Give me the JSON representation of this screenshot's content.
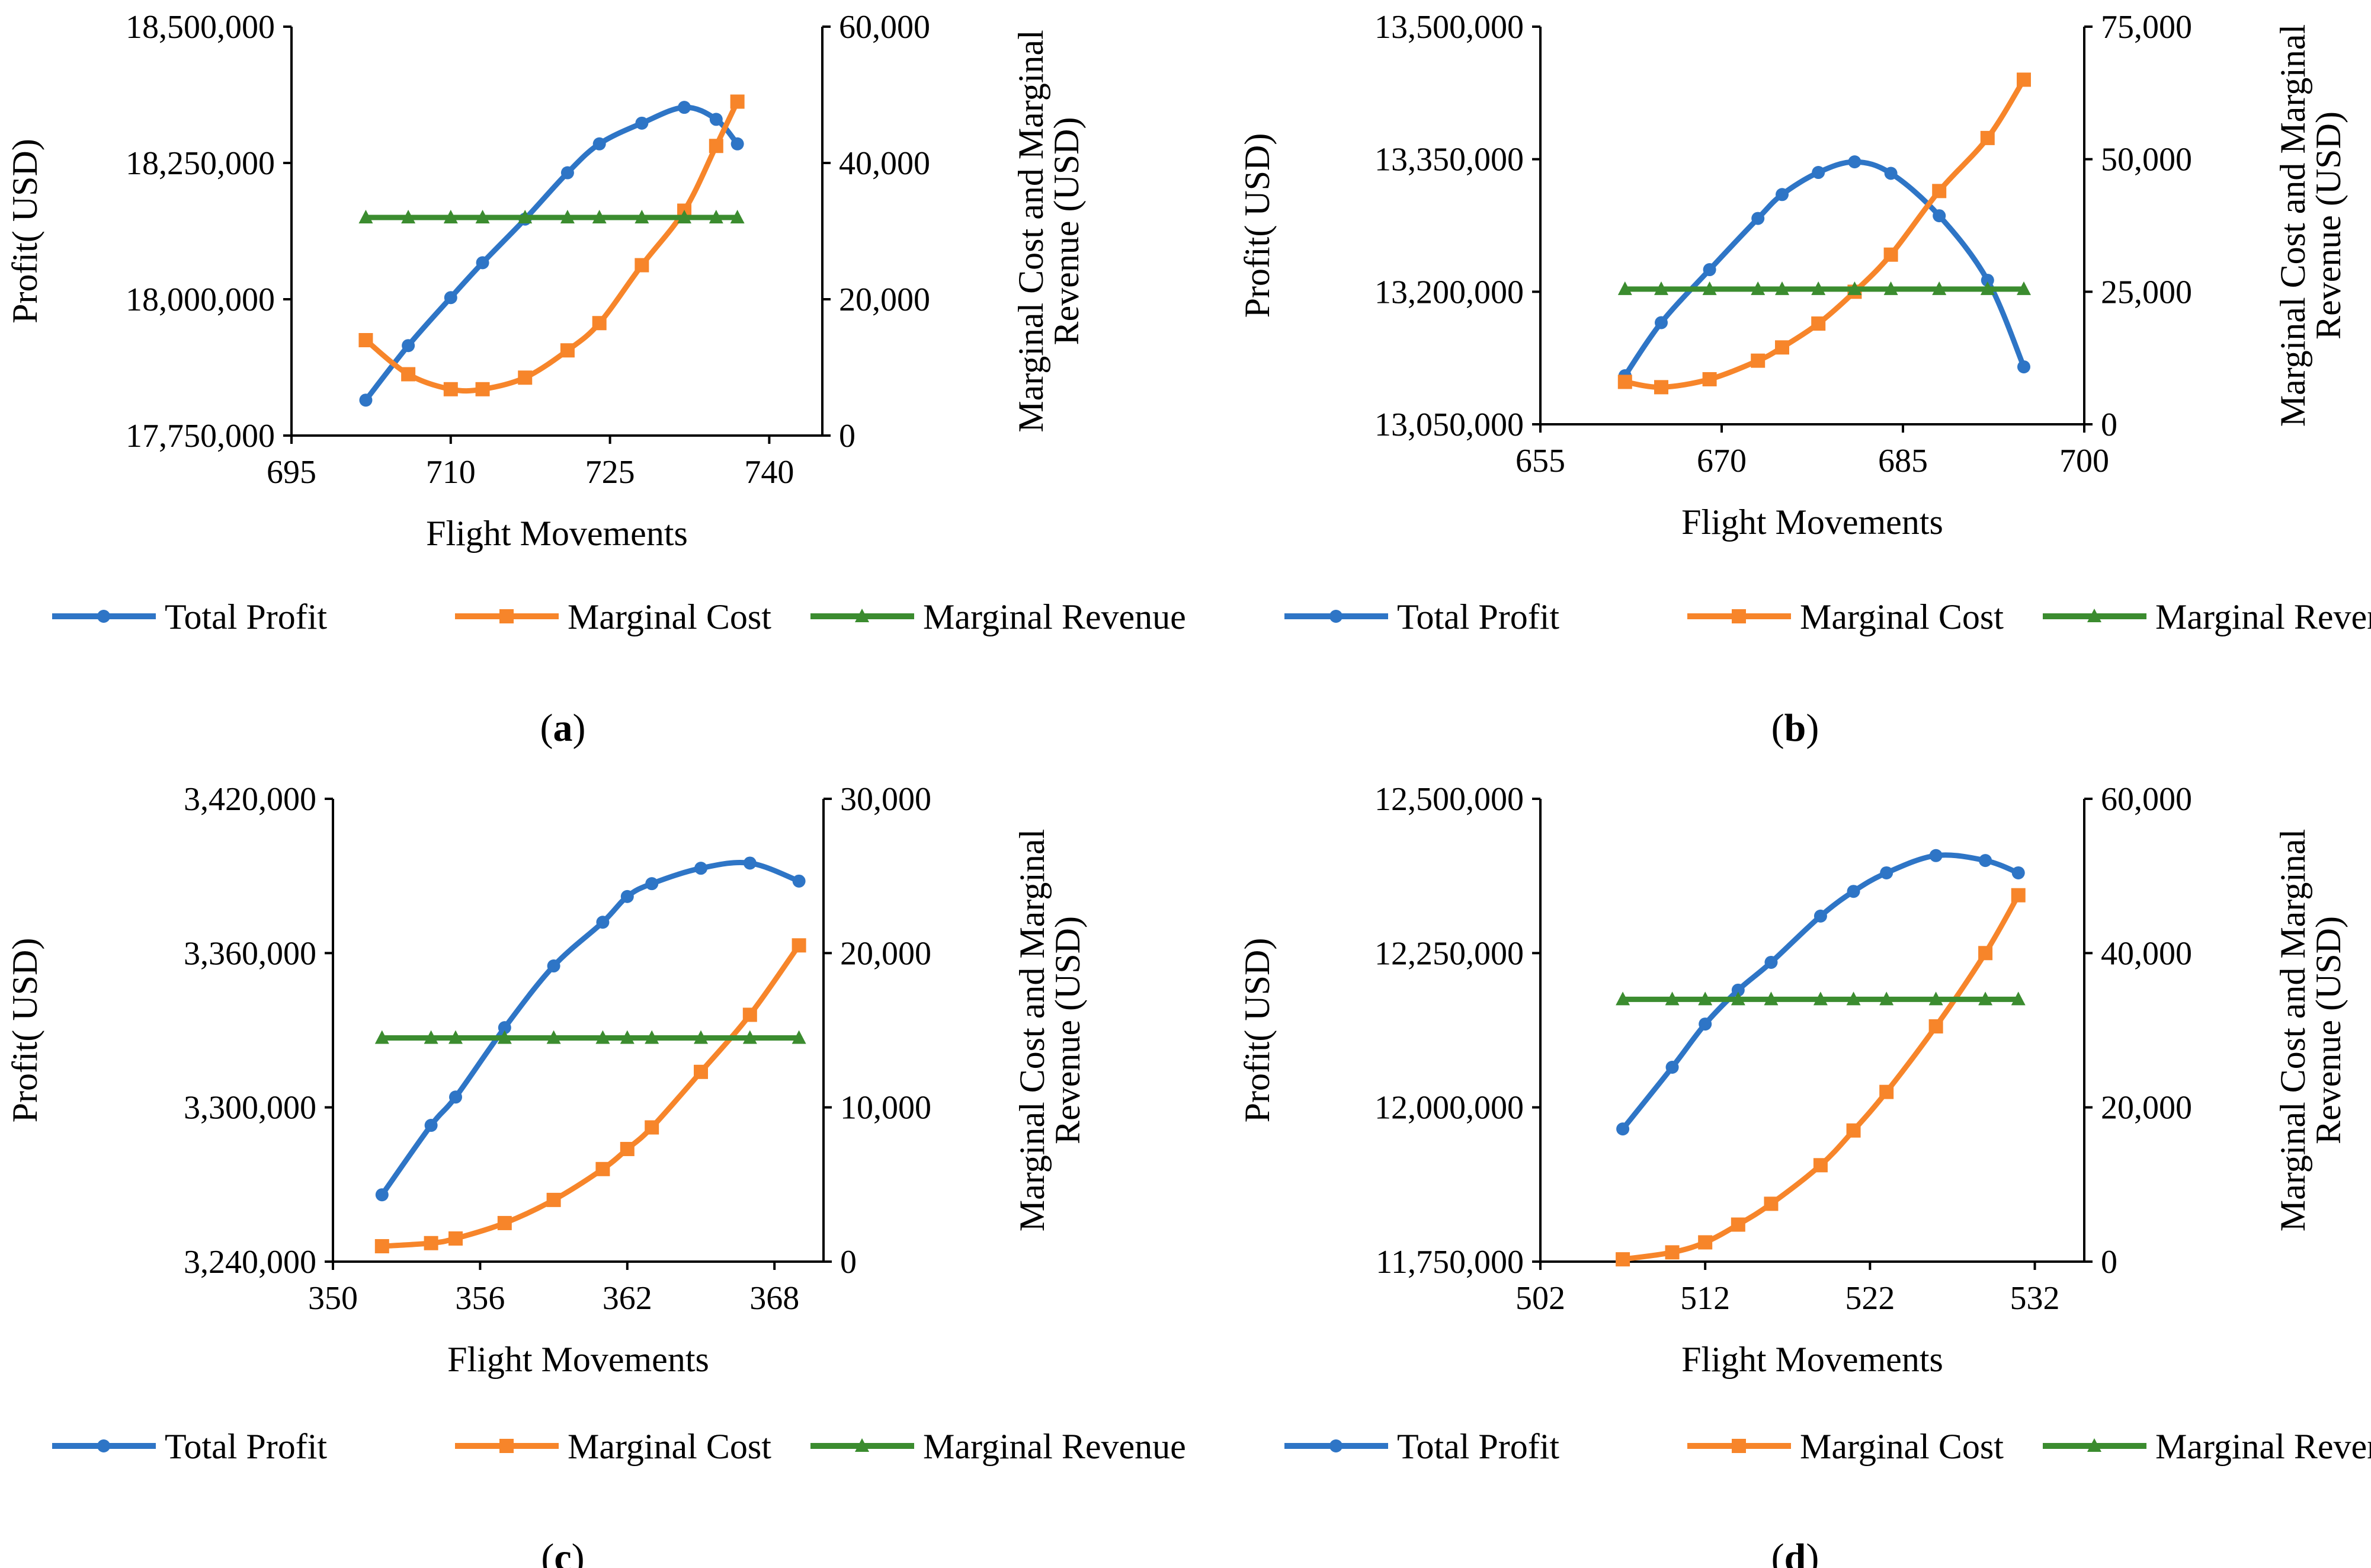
{
  "figure": {
    "xlabel": "Flight Movements",
    "ylabel_left": "Profit( USD)",
    "ylabel_right_line1": "Marginal Cost and Marginal",
    "ylabel_right_line2": "Revenue (USD)",
    "legend": [
      "Total Profit",
      "Marginal Cost",
      "Marginal Revenue"
    ],
    "colors": {
      "total_profit": "#2E75C6",
      "marginal_cost": "#F7852A",
      "marginal_revenue": "#3B8C2F"
    },
    "marker_shapes": {
      "total_profit": "circle",
      "marginal_cost": "square",
      "marginal_revenue": "triangle"
    }
  },
  "chart_data": [
    {
      "type": "line",
      "panel": "a",
      "panel_label": [
        "(",
        "a",
        ")"
      ],
      "xlabel": "Flight Movements",
      "ylabel_left": "Profit( USD)",
      "ylabel_right": "Marginal Cost and Marginal Revenue (USD)",
      "xlim": [
        695,
        745
      ],
      "x_ticks": [
        "695",
        "710",
        "725",
        "740"
      ],
      "x_tick_values": [
        695,
        710,
        725,
        740
      ],
      "ylim_left": [
        17750000,
        18500000
      ],
      "y_ticks_left": [
        "17,750,000",
        "18,000,000",
        "18,250,000",
        "18,500,000"
      ],
      "ylim_right": [
        0,
        60000
      ],
      "y_ticks_right": [
        "0",
        "20,000",
        "40,000",
        "60,000"
      ],
      "series": [
        {
          "name": "Total Profit",
          "axis": "left",
          "marker": "circle",
          "x": [
            702,
            706,
            710,
            713,
            717,
            721,
            724,
            728,
            732,
            735,
            737
          ],
          "y": [
            17815000,
            17915000,
            18003000,
            18067000,
            18147000,
            18232000,
            18285000,
            18323000,
            18352000,
            18330000,
            18285000
          ]
        },
        {
          "name": "Marginal Cost",
          "axis": "right",
          "marker": "square",
          "x": [
            702,
            706,
            710,
            713,
            717,
            721,
            724,
            728,
            732,
            735,
            737
          ],
          "y": [
            14000,
            9000,
            6800,
            6800,
            8500,
            12500,
            16500,
            25000,
            33000,
            42500,
            49000
          ]
        },
        {
          "name": "Marginal Revenue",
          "axis": "right",
          "marker": "triangle",
          "x": [
            702,
            706,
            710,
            713,
            717,
            721,
            724,
            728,
            732,
            735,
            737
          ],
          "y": [
            32000,
            32000,
            32000,
            32000,
            32000,
            32000,
            32000,
            32000,
            32000,
            32000,
            32000
          ]
        }
      ]
    },
    {
      "type": "line",
      "panel": "b",
      "panel_label": [
        "(",
        "b",
        ")"
      ],
      "xlabel": "Flight Movements",
      "ylabel_left": "Profit( USD)",
      "ylabel_right": "Marginal Cost and Marginal Revenue (USD)",
      "xlim": [
        655,
        700
      ],
      "x_ticks": [
        "655",
        "670",
        "685",
        "700"
      ],
      "x_tick_values": [
        655,
        670,
        685,
        700
      ],
      "ylim_left": [
        13050000,
        13500000
      ],
      "y_ticks_left": [
        "13,050,000",
        "13,200,000",
        "13,350,000",
        "13,500,000"
      ],
      "ylim_right": [
        0,
        75000
      ],
      "y_ticks_right": [
        "0",
        "25,000",
        "50,000",
        "75,000"
      ],
      "series": [
        {
          "name": "Total Profit",
          "axis": "left",
          "marker": "circle",
          "x": [
            662,
            665,
            669,
            673,
            675,
            678,
            681,
            684,
            688,
            692,
            695
          ],
          "y": [
            13105000,
            13165000,
            13225000,
            13283000,
            13310000,
            13335000,
            13347000,
            13334000,
            13286000,
            13213000,
            13115000
          ]
        },
        {
          "name": "Marginal Cost",
          "axis": "right",
          "marker": "square",
          "x": [
            662,
            665,
            669,
            673,
            675,
            678,
            681,
            684,
            688,
            692,
            695
          ],
          "y": [
            8000,
            7000,
            8500,
            12000,
            14500,
            19000,
            25000,
            32000,
            44000,
            54000,
            65000
          ]
        },
        {
          "name": "Marginal Revenue",
          "axis": "right",
          "marker": "triangle",
          "x": [
            662,
            665,
            669,
            673,
            675,
            678,
            681,
            684,
            688,
            692,
            695
          ],
          "y": [
            25500,
            25500,
            25500,
            25500,
            25500,
            25500,
            25500,
            25500,
            25500,
            25500,
            25500
          ]
        }
      ]
    },
    {
      "type": "line",
      "panel": "c",
      "panel_label": [
        "(",
        "c",
        ")"
      ],
      "xlabel": "Flight Movements",
      "ylabel_left": "Profit( USD)",
      "ylabel_right": "Marginal Cost and Marginal Revenue (USD)",
      "xlim": [
        350,
        370
      ],
      "x_ticks": [
        "350",
        "356",
        "362",
        "368"
      ],
      "x_tick_values": [
        350,
        356,
        362,
        368
      ],
      "ylim_left": [
        3240000,
        3420000
      ],
      "y_ticks_left": [
        "3,240,000",
        "3,300,000",
        "3,360,000",
        "3,420,000"
      ],
      "ylim_right": [
        0,
        30000
      ],
      "y_ticks_right": [
        "0",
        "10,000",
        "20,000",
        "30,000"
      ],
      "series": [
        {
          "name": "Total Profit",
          "axis": "left",
          "marker": "circle",
          "x": [
            352,
            354,
            355,
            357,
            359,
            361,
            362,
            363,
            365,
            367,
            369
          ],
          "y": [
            3266000,
            3293000,
            3304000,
            3331000,
            3355000,
            3372000,
            3382000,
            3387000,
            3393000,
            3395000,
            3388000
          ]
        },
        {
          "name": "Marginal Cost",
          "axis": "right",
          "marker": "square",
          "x": [
            352,
            354,
            355,
            357,
            359,
            361,
            362,
            363,
            365,
            367,
            369
          ],
          "y": [
            1000,
            1200,
            1500,
            2500,
            4000,
            6000,
            7300,
            8700,
            12300,
            16000,
            20500
          ]
        },
        {
          "name": "Marginal Revenue",
          "axis": "right",
          "marker": "triangle",
          "x": [
            352,
            354,
            355,
            357,
            359,
            361,
            362,
            363,
            365,
            367,
            369
          ],
          "y": [
            14500,
            14500,
            14500,
            14500,
            14500,
            14500,
            14500,
            14500,
            14500,
            14500,
            14500
          ]
        }
      ]
    },
    {
      "type": "line",
      "panel": "d",
      "panel_label": [
        "(",
        "d",
        ")"
      ],
      "xlabel": "Flight Movements",
      "ylabel_left": "Profit( USD)",
      "ylabel_right": "Marginal Cost and Marginal Revenue (USD)",
      "xlim": [
        502,
        535
      ],
      "x_ticks": [
        "502",
        "512",
        "522",
        "532"
      ],
      "x_tick_values": [
        502,
        512,
        522,
        532
      ],
      "ylim_left": [
        11750000,
        12500000
      ],
      "y_ticks_left": [
        "11,750,000",
        "12,000,000",
        "12,250,000",
        "12,500,000"
      ],
      "ylim_right": [
        0,
        60000
      ],
      "y_ticks_right": [
        "0",
        "20,000",
        "40,000",
        "60,000"
      ],
      "series": [
        {
          "name": "Total Profit",
          "axis": "left",
          "marker": "circle",
          "x": [
            507,
            510,
            512,
            514,
            516,
            519,
            521,
            523,
            526,
            529,
            531
          ],
          "y": [
            11965000,
            12065000,
            12135000,
            12190000,
            12235000,
            12310000,
            12350000,
            12380000,
            12408000,
            12400000,
            12380000
          ]
        },
        {
          "name": "Marginal Cost",
          "axis": "right",
          "marker": "square",
          "x": [
            507,
            510,
            512,
            514,
            516,
            519,
            521,
            523,
            526,
            529,
            531
          ],
          "y": [
            300,
            1200,
            2500,
            4800,
            7500,
            12500,
            17000,
            22000,
            30500,
            40000,
            47500
          ]
        },
        {
          "name": "Marginal Revenue",
          "axis": "right",
          "marker": "triangle",
          "x": [
            507,
            510,
            512,
            514,
            516,
            519,
            521,
            523,
            526,
            529,
            531
          ],
          "y": [
            34000,
            34000,
            34000,
            34000,
            34000,
            34000,
            34000,
            34000,
            34000,
            34000,
            34000
          ]
        }
      ]
    }
  ]
}
